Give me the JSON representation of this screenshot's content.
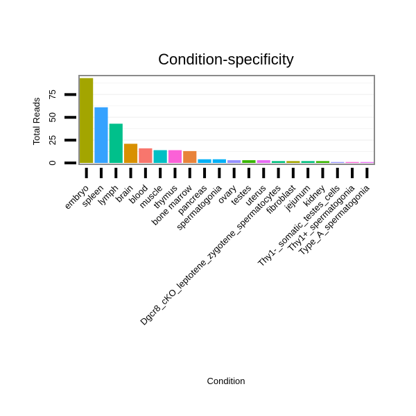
{
  "chart_data": {
    "type": "bar",
    "title": "Condition-specificity",
    "xlabel": "Condition",
    "ylabel": "Total Reads",
    "ylim": [
      0,
      95
    ],
    "yticks": [
      0,
      25,
      50,
      75
    ],
    "grid": true,
    "categories": [
      "embryo",
      "spleen",
      "lymph",
      "brain",
      "blood",
      "muscle",
      "thymus",
      "bone marrow",
      "pancreas",
      "spermatogonia",
      "ovary",
      "testes",
      "uterus",
      "Dgcr8_cKO_leptotene_zygotene_spermatocytes",
      "fibroblast",
      "jejunum",
      "kidney",
      "Thy1-_somatic_testes_cells",
      "Thy1+_spermatogonia",
      "Type_A_spermatogonia"
    ],
    "values": [
      93,
      61,
      43,
      21,
      16,
      14,
      14,
      13,
      4,
      4,
      3,
      3,
      3,
      2,
      2,
      2,
      2,
      1,
      1,
      1
    ],
    "colors": [
      "#a3a500",
      "#35a2ff",
      "#00c08b",
      "#d89000",
      "#f8766d",
      "#00bfc4",
      "#fb61d7",
      "#e8833a",
      "#00b0f6",
      "#00b0f6",
      "#9590ff",
      "#39b600",
      "#e76bf3",
      "#00bf7d",
      "#a3a500",
      "#00bf7d",
      "#39b600",
      "#9590ff",
      "#fb61d7",
      "#e76bf3"
    ]
  }
}
